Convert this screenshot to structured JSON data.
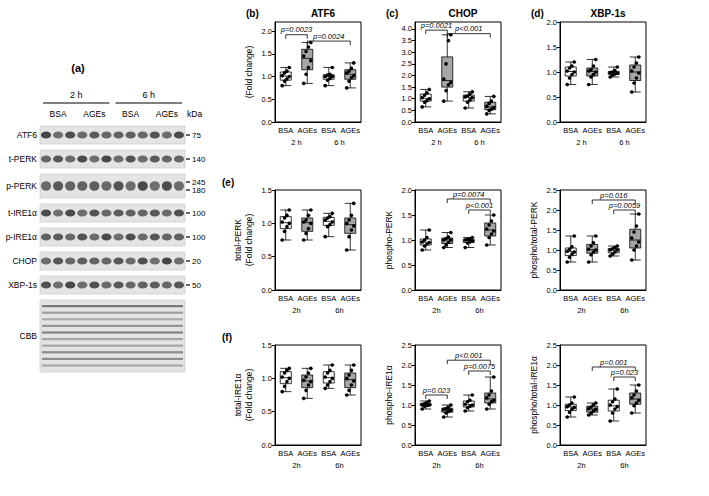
{
  "blot": {
    "panel": "(a)",
    "times": [
      "2 h",
      "6 h"
    ],
    "treatments": [
      "BSA",
      "AGEs",
      "BSA",
      "AGEs"
    ],
    "unit": "kDa",
    "rows": [
      {
        "label": "ATF6",
        "markers": [
          75
        ]
      },
      {
        "label": "t-PERK",
        "markers": [
          140
        ]
      },
      {
        "label": "p-PERK",
        "markers": [
          245,
          180
        ]
      },
      {
        "label": "t-IRE1α",
        "markers": [
          100
        ]
      },
      {
        "label": "p-IRE1α",
        "markers": [
          100
        ]
      },
      {
        "label": "CHOP",
        "markers": [
          20
        ]
      },
      {
        "label": "XBP-1s",
        "markers": [
          50
        ]
      },
      {
        "label": "CBB",
        "markers": []
      }
    ]
  },
  "chart_data": [
    {
      "type": "boxplot",
      "panel": "(b)",
      "title": "ATF6",
      "ylabel": [
        "(Fold change)"
      ],
      "categories": [
        "BSA",
        "AGEs",
        "BSA",
        "AGEs"
      ],
      "groups": [
        "2 h",
        "6 h"
      ],
      "colors": [
        "#ffffff",
        "#a6a6a6",
        "#ffffff",
        "#a6a6a6"
      ],
      "ylim": [
        0,
        2.2
      ],
      "yticks": [
        {
          "value": 0,
          "label": "0.0"
        },
        0.5,
        {
          "value": 1,
          "label": "1.0"
        },
        1.5,
        {
          "value": 2,
          "label": "2.0"
        }
      ],
      "boxes": [
        [
          0.8,
          0.92,
          1.01,
          1.1,
          1.2
        ],
        [
          0.85,
          1.15,
          1.4,
          1.6,
          1.75
        ],
        [
          0.8,
          0.94,
          1.0,
          1.04,
          1.2
        ],
        [
          0.75,
          0.94,
          1.05,
          1.15,
          1.3
        ]
      ],
      "points": [
        [
          0.8,
          0.9,
          0.95,
          1.0,
          1.02,
          1.08,
          1.12,
          1.2
        ],
        [
          0.85,
          1.05,
          1.2,
          1.35,
          1.45,
          1.55,
          1.65,
          1.75
        ],
        [
          0.8,
          0.92,
          0.96,
          1.0,
          1.0,
          1.03,
          1.05,
          1.2
        ],
        [
          0.75,
          0.9,
          0.98,
          1.02,
          1.08,
          1.12,
          1.18,
          1.3
        ]
      ],
      "annotations": [
        {
          "from": 0,
          "to": 1,
          "y": 1.92,
          "label": "p=0.0023"
        },
        {
          "from": 1,
          "to": 3,
          "y": 1.78,
          "label": "p=0.0024"
        }
      ]
    },
    {
      "type": "boxplot",
      "panel": "(c)",
      "title": "CHOP",
      "categories": [
        "BSA",
        "AGEs",
        "BSA",
        "AGEs"
      ],
      "groups": [
        "2 h",
        "6 h"
      ],
      "colors": [
        "#ffffff",
        "#a6a6a6",
        "#ffffff",
        "#a6a6a6"
      ],
      "ylim": [
        0,
        4.3
      ],
      "yticks": [
        {
          "value": 0,
          "label": "0.0"
        },
        0.5,
        {
          "value": 1,
          "label": "1.0"
        },
        1.5,
        {
          "value": 2,
          "label": "2.0"
        },
        2.5,
        {
          "value": 3,
          "label": "3.0"
        },
        3.5,
        {
          "value": 4,
          "label": "4.0"
        }
      ],
      "boxes": [
        [
          0.65,
          0.9,
          1.02,
          1.2,
          1.4
        ],
        [
          0.9,
          1.5,
          1.78,
          2.8,
          3.75
        ],
        [
          0.6,
          0.9,
          1.06,
          1.16,
          1.3
        ],
        [
          0.35,
          0.53,
          0.65,
          0.85,
          1.1
        ]
      ],
      "points": [
        [
          0.65,
          0.85,
          0.92,
          1.0,
          1.05,
          1.15,
          1.25,
          1.4
        ],
        [
          0.9,
          1.35,
          1.6,
          1.7,
          1.85,
          2.5,
          3.5,
          3.75
        ],
        [
          0.6,
          0.85,
          0.95,
          1.05,
          1.08,
          1.12,
          1.2,
          1.3
        ],
        [
          0.35,
          0.5,
          0.55,
          0.62,
          0.68,
          0.8,
          0.9,
          1.1
        ]
      ],
      "annotations": [
        {
          "from": 0,
          "to": 1,
          "y": 3.95,
          "label": "p=0.0021"
        },
        {
          "from": 1,
          "to": 3,
          "y": 3.8,
          "label": "p<0.001"
        }
      ]
    },
    {
      "type": "boxplot",
      "panel": "(d)",
      "title": "XBP-1s",
      "categories": [
        "BSA",
        "AGEs",
        "BSA",
        "AGEs"
      ],
      "groups": [
        "2 h",
        "6 h"
      ],
      "colors": [
        "#ffffff",
        "#a6a6a6",
        "#ffffff",
        "#a6a6a6"
      ],
      "ylim": [
        0,
        2
      ],
      "yticks": [
        {
          "value": 0,
          "label": "0.0"
        },
        0.5,
        {
          "value": 1,
          "label": "1.0"
        },
        1.5,
        {
          "value": 2,
          "label": "2.0"
        }
      ],
      "boxes": [
        [
          0.75,
          0.92,
          1.01,
          1.1,
          1.2
        ],
        [
          0.75,
          0.92,
          1.01,
          1.08,
          1.25
        ],
        [
          0.9,
          0.95,
          0.985,
          1.01,
          1.1
        ],
        [
          0.6,
          0.83,
          1.0,
          1.14,
          1.3
        ]
      ],
      "points": [
        [
          0.75,
          0.88,
          0.95,
          1.0,
          1.02,
          1.08,
          1.12,
          1.2
        ],
        [
          0.75,
          0.9,
          0.95,
          1.0,
          1.02,
          1.05,
          1.12,
          1.25
        ],
        [
          0.9,
          0.94,
          0.96,
          0.98,
          0.99,
          1.0,
          1.03,
          1.1
        ],
        [
          0.6,
          0.78,
          0.88,
          0.98,
          1.02,
          1.1,
          1.18,
          1.3
        ]
      ]
    },
    {
      "type": "boxplot",
      "panel": "(e)",
      "ylabel": [
        "total-PERK",
        "(Fold change)"
      ],
      "categories": [
        "BSA",
        "AGEs",
        "BSA",
        "AGEs"
      ],
      "groups": [
        "2h",
        "6h"
      ],
      "colors": [
        "#ffffff",
        "#a6a6a6",
        "#ffffff",
        "#a6a6a6"
      ],
      "ylim": [
        0,
        1.5
      ],
      "yticks": [
        {
          "value": 0,
          "label": "0.0"
        },
        0.5,
        {
          "value": 1,
          "label": "1.0"
        },
        1.5
      ],
      "boxes": [
        [
          0.75,
          0.92,
          1.01,
          1.1,
          1.2
        ],
        [
          0.75,
          0.88,
          1.01,
          1.08,
          1.2
        ],
        [
          0.8,
          0.97,
          1.03,
          1.09,
          1.15
        ],
        [
          0.6,
          0.85,
          0.98,
          1.08,
          1.3
        ]
      ],
      "points": [
        [
          0.75,
          0.88,
          0.95,
          1.0,
          1.02,
          1.08,
          1.12,
          1.2
        ],
        [
          0.75,
          0.85,
          0.92,
          1.0,
          1.02,
          1.05,
          1.12,
          1.2
        ],
        [
          0.8,
          0.95,
          0.98,
          1.02,
          1.05,
          1.08,
          1.1,
          1.15
        ],
        [
          0.6,
          0.8,
          0.9,
          0.96,
          1.0,
          1.05,
          1.12,
          1.3
        ]
      ]
    },
    {
      "type": "boxplot",
      "ylabel": [
        "phospho-PERK"
      ],
      "categories": [
        "BSA",
        "AGEs",
        "BSA",
        "AGEs"
      ],
      "groups": [
        "2h",
        "6h"
      ],
      "colors": [
        "#ffffff",
        "#a6a6a6",
        "#ffffff",
        "#a6a6a6"
      ],
      "ylim": [
        0,
        2
      ],
      "yticks": [
        {
          "value": 0,
          "label": "0.0"
        },
        0.5,
        {
          "value": 1,
          "label": "1.0"
        },
        1.5,
        {
          "value": 2,
          "label": "2.0"
        }
      ],
      "boxes": [
        [
          0.8,
          0.9,
          0.955,
          1.02,
          1.2
        ],
        [
          0.85,
          0.93,
          1.0,
          1.04,
          1.15
        ],
        [
          0.85,
          0.95,
          0.99,
          1.015,
          1.05
        ],
        [
          0.9,
          1.08,
          1.2,
          1.34,
          1.5
        ]
      ],
      "points": [
        [
          0.8,
          0.88,
          0.92,
          0.95,
          0.96,
          1.0,
          1.05,
          1.2
        ],
        [
          0.85,
          0.9,
          0.95,
          1.0,
          1.0,
          1.03,
          1.06,
          1.15
        ],
        [
          0.85,
          0.94,
          0.96,
          0.98,
          1.0,
          1.01,
          1.02,
          1.05
        ],
        [
          0.9,
          1.05,
          1.12,
          1.18,
          1.22,
          1.3,
          1.38,
          1.5
        ]
      ],
      "annotations": [
        {
          "from": 1,
          "to": 3,
          "y": 1.82,
          "label": "p=0.0074"
        },
        {
          "from": 2,
          "to": 3,
          "y": 1.6,
          "label": "p<0.001"
        }
      ]
    },
    {
      "type": "boxplot",
      "ylabel": [
        "phospho/total-PERK"
      ],
      "categories": [
        "BSA",
        "AGEs",
        "BSA",
        "AGEs"
      ],
      "groups": [
        "2h",
        "6h"
      ],
      "colors": [
        "#ffffff",
        "#a6a6a6",
        "#ffffff",
        "#a6a6a6"
      ],
      "ylim": [
        0,
        2.5
      ],
      "yticks": [
        {
          "value": 0,
          "label": "0.0"
        },
        0.5,
        {
          "value": 1,
          "label": "1.0"
        },
        1.5,
        {
          "value": 2,
          "label": "2.0"
        },
        2.5
      ],
      "boxes": [
        [
          0.7,
          0.86,
          0.96,
          1.05,
          1.35
        ],
        [
          0.7,
          0.92,
          1.01,
          1.14,
          1.35
        ],
        [
          0.85,
          0.93,
          1.0,
          1.04,
          1.1
        ],
        [
          0.75,
          1.05,
          1.25,
          1.52,
          1.9
        ]
      ],
      "points": [
        [
          0.7,
          0.82,
          0.9,
          0.95,
          0.97,
          1.02,
          1.08,
          1.35
        ],
        [
          0.7,
          0.88,
          0.95,
          1.0,
          1.02,
          1.1,
          1.18,
          1.35
        ],
        [
          0.85,
          0.9,
          0.95,
          1.0,
          1.0,
          1.03,
          1.06,
          1.1
        ],
        [
          0.75,
          1.0,
          1.1,
          1.2,
          1.3,
          1.45,
          1.6,
          1.9
        ]
      ],
      "annotations": [
        {
          "from": 1,
          "to": 3,
          "y": 2.25,
          "label": "p=0.016"
        },
        {
          "from": 2,
          "to": 3,
          "y": 2.0,
          "label": "p=0.0059"
        }
      ]
    },
    {
      "type": "boxplot",
      "panel": "(f)",
      "ylabel": [
        "total-IRE1α",
        "(Fold change)"
      ],
      "categories": [
        "BSA",
        "AGEs",
        "BSA",
        "AGEs"
      ],
      "groups": [
        "2h",
        "6h"
      ],
      "colors": [
        "#ffffff",
        "#a6a6a6",
        "#ffffff",
        "#a6a6a6"
      ],
      "ylim": [
        0,
        1.5
      ],
      "yticks": [
        {
          "value": 0,
          "label": "0.0"
        },
        0.5,
        {
          "value": 1,
          "label": "1.0"
        },
        1.5
      ],
      "boxes": [
        [
          0.8,
          0.92,
          1.01,
          1.1,
          1.15
        ],
        [
          0.7,
          0.86,
          0.96,
          1.05,
          1.15
        ],
        [
          0.85,
          0.93,
          1.01,
          1.1,
          1.2
        ],
        [
          0.75,
          0.86,
          0.98,
          1.08,
          1.2
        ]
      ],
      "points": [
        [
          0.8,
          0.88,
          0.95,
          1.0,
          1.02,
          1.08,
          1.12,
          1.15
        ],
        [
          0.7,
          0.82,
          0.9,
          0.95,
          0.97,
          1.02,
          1.08,
          1.15
        ],
        [
          0.85,
          0.9,
          0.95,
          1.0,
          1.02,
          1.08,
          1.12,
          1.2
        ],
        [
          0.75,
          0.82,
          0.9,
          0.96,
          1.0,
          1.05,
          1.12,
          1.2
        ]
      ]
    },
    {
      "type": "boxplot",
      "ylabel": [
        "phospho-IRE1α"
      ],
      "categories": [
        "BSA",
        "AGEs",
        "BSA",
        "AGEs"
      ],
      "groups": [
        "2h",
        "6h"
      ],
      "colors": [
        "#ffffff",
        "#a6a6a6",
        "#ffffff",
        "#a6a6a6"
      ],
      "ylim": [
        0,
        2.5
      ],
      "yticks": [
        {
          "value": 0,
          "label": "0.0"
        },
        0.5,
        {
          "value": 1,
          "label": "1.0"
        },
        1.5,
        {
          "value": 2,
          "label": "2.0"
        },
        2.5
      ],
      "boxes": [
        [
          0.9,
          0.98,
          1.005,
          1.04,
          1.1
        ],
        [
          0.7,
          0.82,
          0.88,
          0.92,
          1.0
        ],
        [
          0.85,
          0.95,
          1.01,
          1.1,
          1.25
        ],
        [
          0.9,
          1.05,
          1.15,
          1.3,
          1.7
        ]
      ],
      "points": [
        [
          0.9,
          0.97,
          0.99,
          1.0,
          1.01,
          1.03,
          1.06,
          1.1
        ],
        [
          0.7,
          0.8,
          0.84,
          0.87,
          0.89,
          0.91,
          0.94,
          1.0
        ],
        [
          0.85,
          0.93,
          0.97,
          1.0,
          1.02,
          1.08,
          1.12,
          1.25
        ],
        [
          0.9,
          1.02,
          1.08,
          1.12,
          1.18,
          1.25,
          1.35,
          1.7
        ]
      ],
      "annotations": [
        {
          "from": 0,
          "to": 1,
          "y": 1.25,
          "label": "p=0.023"
        },
        {
          "from": 1,
          "to": 3,
          "y": 2.12,
          "label": "p<0.001"
        },
        {
          "from": 2,
          "to": 3,
          "y": 1.85,
          "label": "p=0.0075"
        }
      ]
    },
    {
      "type": "boxplot",
      "ylabel": [
        "phospho/total-IRE1α"
      ],
      "categories": [
        "BSA",
        "AGEs",
        "BSA",
        "AGEs"
      ],
      "groups": [
        "2h",
        "6h"
      ],
      "colors": [
        "#ffffff",
        "#a6a6a6",
        "#ffffff",
        "#a6a6a6"
      ],
      "ylim": [
        0,
        2.5
      ],
      "yticks": [
        {
          "value": 0,
          "label": "0.0"
        },
        0.5,
        {
          "value": 1,
          "label": "1.0"
        },
        1.5,
        {
          "value": 2,
          "label": "2.0"
        },
        2.5
      ],
      "boxes": [
        [
          0.7,
          0.86,
          0.95,
          1.02,
          1.2
        ],
        [
          0.75,
          0.82,
          0.9,
          0.97,
          1.05
        ],
        [
          0.6,
          0.85,
          0.98,
          1.12,
          1.4
        ],
        [
          0.8,
          1.02,
          1.15,
          1.3,
          1.5
        ]
      ],
      "points": [
        [
          0.7,
          0.82,
          0.9,
          0.94,
          0.96,
          1.0,
          1.05,
          1.2
        ],
        [
          0.75,
          0.8,
          0.85,
          0.89,
          0.91,
          0.95,
          1.0,
          1.05
        ],
        [
          0.6,
          0.8,
          0.9,
          0.96,
          1.0,
          1.08,
          1.15,
          1.4
        ],
        [
          0.8,
          0.98,
          1.05,
          1.12,
          1.18,
          1.25,
          1.35,
          1.5
        ]
      ],
      "annotations": [
        {
          "from": 1,
          "to": 3,
          "y": 1.95,
          "label": "p=0.001"
        },
        {
          "from": 2,
          "to": 3,
          "y": 1.7,
          "label": "p=0.023"
        }
      ]
    }
  ]
}
